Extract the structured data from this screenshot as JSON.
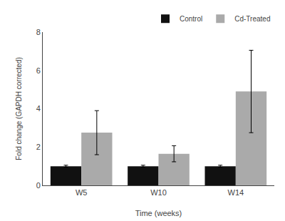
{
  "chart_data": {
    "type": "bar",
    "xlabel": "Time (weeks)",
    "ylabel": "Fold change (GAPDH corrected)",
    "categories": [
      "W5",
      "W10",
      "W14"
    ],
    "series": [
      {
        "name": "Control",
        "color": "#111111",
        "values": [
          1.0,
          1.0,
          1.0
        ],
        "errors": [
          0.05,
          0.05,
          0.05
        ]
      },
      {
        "name": "Cd-Treated",
        "color": "#aaaaaa",
        "values": [
          2.75,
          1.65,
          4.9
        ],
        "errors": [
          1.15,
          0.42,
          2.15
        ]
      }
    ],
    "ylim": [
      0,
      8
    ],
    "yticks": [
      0,
      2,
      4,
      6,
      8
    ],
    "grid": false,
    "legend": "upper right"
  }
}
